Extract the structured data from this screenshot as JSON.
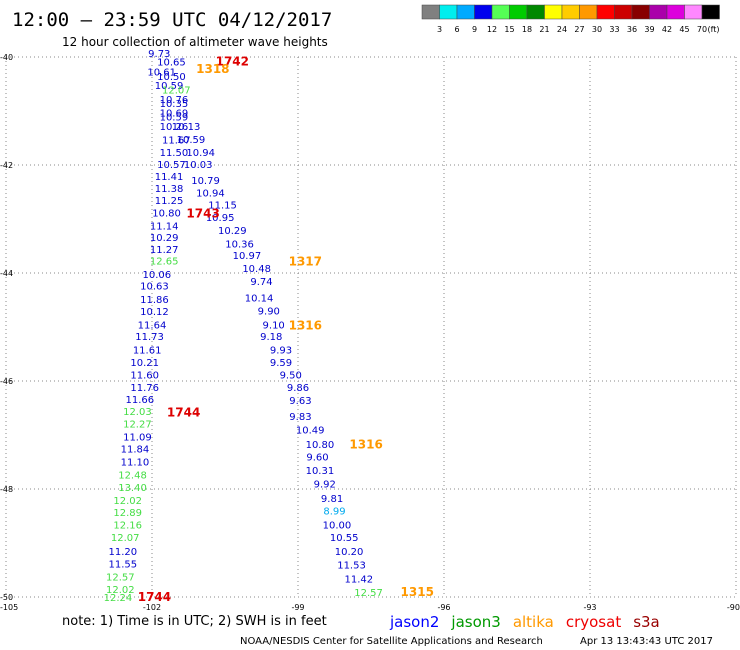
{
  "header": {
    "title": "12:00 – 23:59 UTC 04/12/2017",
    "subtitle": "12 hour collection of altimeter wave heights"
  },
  "colorbar": {
    "labels": [
      "3",
      "6",
      "9",
      "12",
      "15",
      "18",
      "21",
      "24",
      "27",
      "30",
      "33",
      "36",
      "39",
      "42",
      "45",
      "70"
    ],
    "unit": "(ft)",
    "colors": [
      "#808080",
      "#00eeee",
      "#00aaff",
      "#0000ee",
      "#55ff55",
      "#00cc00",
      "#008800",
      "#ffff00",
      "#ffcc00",
      "#ff9900",
      "#ff0000",
      "#cc0000",
      "#880000",
      "#aa00aa",
      "#dd00dd",
      "#ff88ff",
      "#000000"
    ]
  },
  "footer": {
    "note": "note:  1) Time is in UTC;  2) SWH is in feet",
    "credit": "NOAA/NESDIS Center for Satellite Applications and Research",
    "timestamp": "Apr 13 13:43:43 UTC 2017"
  },
  "legend": [
    {
      "name": "jason2",
      "color": "#0000ff"
    },
    {
      "name": "jason3",
      "color": "#009900"
    },
    {
      "name": "altika",
      "color": "#ff9900"
    },
    {
      "name": "cryosat",
      "color": "#ee0000"
    },
    {
      "name": "s3a",
      "color": "#990000"
    }
  ],
  "chart_data": {
    "type": "scatter",
    "title": "12:00 – 23:59 UTC 04/12/2017",
    "xlabel": "",
    "ylabel": "",
    "xlim": [
      -105,
      -90
    ],
    "ylim": [
      -50,
      -40
    ],
    "xticks": [
      -105,
      -102,
      -99,
      -96,
      -93,
      -90
    ],
    "yticks": [
      -40,
      -42,
      -44,
      -46,
      -48,
      -50
    ],
    "grid": true,
    "wave_heights_ft": [
      {
        "lon": -101.85,
        "lat": -39.93,
        "v": "9.73",
        "c": "#0000cc"
      },
      {
        "lon": -101.6,
        "lat": -40.08,
        "v": "10.65",
        "c": "#0000cc"
      },
      {
        "lon": -101.8,
        "lat": -40.27,
        "v": "10.61",
        "c": "#0000cc"
      },
      {
        "lon": -101.6,
        "lat": -40.35,
        "v": "10.50",
        "c": "#0000cc"
      },
      {
        "lon": -101.65,
        "lat": -40.52,
        "v": "10.59",
        "c": "#0000cc"
      },
      {
        "lon": -101.5,
        "lat": -40.6,
        "v": "12.07",
        "c": "#44dd44"
      },
      {
        "lon": -101.55,
        "lat": -40.78,
        "v": "10.76",
        "c": "#0000cc"
      },
      {
        "lon": -101.55,
        "lat": -40.85,
        "v": "10.35",
        "c": "#0000cc"
      },
      {
        "lon": -101.55,
        "lat": -41.03,
        "v": "10.69",
        "c": "#0000cc"
      },
      {
        "lon": -101.55,
        "lat": -41.1,
        "v": "10.59",
        "c": "#0000cc"
      },
      {
        "lon": -101.55,
        "lat": -41.28,
        "v": "10.26",
        "c": "#0000cc"
      },
      {
        "lon": -101.3,
        "lat": -41.28,
        "v": "10.13",
        "c": "#0000cc"
      },
      {
        "lon": -101.5,
        "lat": -41.53,
        "v": "11.67",
        "c": "#0000cc"
      },
      {
        "lon": -101.2,
        "lat": -41.52,
        "v": "10.59",
        "c": "#0000cc"
      },
      {
        "lon": -101.55,
        "lat": -41.76,
        "v": "11.50",
        "c": "#0000cc"
      },
      {
        "lon": -101.0,
        "lat": -41.76,
        "v": "10.94",
        "c": "#0000cc"
      },
      {
        "lon": -101.6,
        "lat": -41.98,
        "v": "10.57",
        "c": "#0000cc"
      },
      {
        "lon": -101.05,
        "lat": -41.98,
        "v": "10.03",
        "c": "#0000cc"
      },
      {
        "lon": -101.65,
        "lat": -42.2,
        "v": "11.41",
        "c": "#0000cc"
      },
      {
        "lon": -100.9,
        "lat": -42.28,
        "v": "10.79",
        "c": "#0000cc"
      },
      {
        "lon": -101.65,
        "lat": -42.43,
        "v": "11.38",
        "c": "#0000cc"
      },
      {
        "lon": -100.8,
        "lat": -42.51,
        "v": "10.94",
        "c": "#0000cc"
      },
      {
        "lon": -101.65,
        "lat": -42.65,
        "v": "11.25",
        "c": "#0000cc"
      },
      {
        "lon": -100.55,
        "lat": -42.73,
        "v": "11.15",
        "c": "#0000cc"
      },
      {
        "lon": -101.7,
        "lat": -42.88,
        "v": "10.80",
        "c": "#0000cc"
      },
      {
        "lon": -100.6,
        "lat": -42.96,
        "v": "10.95",
        "c": "#0000cc"
      },
      {
        "lon": -101.75,
        "lat": -43.12,
        "v": "11.14",
        "c": "#0000cc"
      },
      {
        "lon": -100.35,
        "lat": -43.2,
        "v": "10.29",
        "c": "#0000cc"
      },
      {
        "lon": -101.75,
        "lat": -43.33,
        "v": "10.29",
        "c": "#0000cc"
      },
      {
        "lon": -100.2,
        "lat": -43.45,
        "v": "10.36",
        "c": "#0000cc"
      },
      {
        "lon": -101.75,
        "lat": -43.56,
        "v": "11.27",
        "c": "#0000cc"
      },
      {
        "lon": -100.05,
        "lat": -43.67,
        "v": "10.97",
        "c": "#0000cc"
      },
      {
        "lon": -101.75,
        "lat": -43.77,
        "v": "12.65",
        "c": "#44dd44"
      },
      {
        "lon": -99.85,
        "lat": -43.91,
        "v": "10.48",
        "c": "#0000cc"
      },
      {
        "lon": -101.9,
        "lat": -44.02,
        "v": "10.06",
        "c": "#0000cc"
      },
      {
        "lon": -99.75,
        "lat": -44.15,
        "v": "9.74",
        "c": "#0000cc"
      },
      {
        "lon": -101.95,
        "lat": -44.23,
        "v": "10.63",
        "c": "#0000cc"
      },
      {
        "lon": -99.8,
        "lat": -44.45,
        "v": "10.14",
        "c": "#0000cc"
      },
      {
        "lon": -101.95,
        "lat": -44.48,
        "v": "11.86",
        "c": "#0000cc"
      },
      {
        "lon": -99.6,
        "lat": -44.69,
        "v": "9.90",
        "c": "#0000cc"
      },
      {
        "lon": -101.95,
        "lat": -44.7,
        "v": "10.12",
        "c": "#0000cc"
      },
      {
        "lon": -99.5,
        "lat": -44.95,
        "v": "9.10",
        "c": "#0000cc"
      },
      {
        "lon": -102.0,
        "lat": -44.95,
        "v": "11.64",
        "c": "#0000cc"
      },
      {
        "lon": -99.55,
        "lat": -45.17,
        "v": "9.18",
        "c": "#0000cc"
      },
      {
        "lon": -102.05,
        "lat": -45.17,
        "v": "11.73",
        "c": "#0000cc"
      },
      {
        "lon": -99.35,
        "lat": -45.42,
        "v": "9.93",
        "c": "#0000cc"
      },
      {
        "lon": -102.1,
        "lat": -45.42,
        "v": "11.61",
        "c": "#0000cc"
      },
      {
        "lon": -99.35,
        "lat": -45.65,
        "v": "9.59",
        "c": "#0000cc"
      },
      {
        "lon": -102.15,
        "lat": -45.65,
        "v": "10.21",
        "c": "#0000cc"
      },
      {
        "lon": -99.15,
        "lat": -45.88,
        "v": "9.50",
        "c": "#0000cc"
      },
      {
        "lon": -102.15,
        "lat": -45.88,
        "v": "11.60",
        "c": "#0000cc"
      },
      {
        "lon": -99.0,
        "lat": -46.11,
        "v": "9.86",
        "c": "#0000cc"
      },
      {
        "lon": -102.15,
        "lat": -46.11,
        "v": "11.76",
        "c": "#0000cc"
      },
      {
        "lon": -98.95,
        "lat": -46.35,
        "v": "9.63",
        "c": "#0000cc"
      },
      {
        "lon": -102.25,
        "lat": -46.33,
        "v": "11.66",
        "c": "#0000cc"
      },
      {
        "lon": -102.3,
        "lat": -46.56,
        "v": "12.03",
        "c": "#44dd44"
      },
      {
        "lon": -98.95,
        "lat": -46.65,
        "v": "9.83",
        "c": "#0000cc"
      },
      {
        "lon": -102.3,
        "lat": -46.79,
        "v": "12.27",
        "c": "#44dd44"
      },
      {
        "lon": -98.75,
        "lat": -46.9,
        "v": "10.49",
        "c": "#0000cc"
      },
      {
        "lon": -102.3,
        "lat": -47.03,
        "v": "11.09",
        "c": "#0000cc"
      },
      {
        "lon": -98.55,
        "lat": -47.17,
        "v": "10.80",
        "c": "#0000cc"
      },
      {
        "lon": -102.35,
        "lat": -47.25,
        "v": "11.84",
        "c": "#0000cc"
      },
      {
        "lon": -98.6,
        "lat": -47.4,
        "v": "9.60",
        "c": "#0000cc"
      },
      {
        "lon": -102.35,
        "lat": -47.49,
        "v": "11.10",
        "c": "#0000cc"
      },
      {
        "lon": -98.55,
        "lat": -47.65,
        "v": "10.31",
        "c": "#0000cc"
      },
      {
        "lon": -102.4,
        "lat": -47.73,
        "v": "12.48",
        "c": "#44dd44"
      },
      {
        "lon": -98.45,
        "lat": -47.9,
        "v": "9.92",
        "c": "#0000cc"
      },
      {
        "lon": -102.4,
        "lat": -47.96,
        "v": "13.40",
        "c": "#44dd44"
      },
      {
        "lon": -98.3,
        "lat": -48.17,
        "v": "9.81",
        "c": "#0000cc"
      },
      {
        "lon": -102.5,
        "lat": -48.2,
        "v": "12.02",
        "c": "#44dd44"
      },
      {
        "lon": -98.25,
        "lat": -48.4,
        "v": "8.99",
        "c": "#00aaee"
      },
      {
        "lon": -102.5,
        "lat": -48.43,
        "v": "12.89",
        "c": "#44dd44"
      },
      {
        "lon": -98.2,
        "lat": -48.66,
        "v": "10.00",
        "c": "#0000cc"
      },
      {
        "lon": -102.5,
        "lat": -48.66,
        "v": "12.16",
        "c": "#44dd44"
      },
      {
        "lon": -98.05,
        "lat": -48.89,
        "v": "10.55",
        "c": "#0000cc"
      },
      {
        "lon": -102.55,
        "lat": -48.89,
        "v": "12.07",
        "c": "#44dd44"
      },
      {
        "lon": -97.95,
        "lat": -49.15,
        "v": "10.20",
        "c": "#0000cc"
      },
      {
        "lon": -102.6,
        "lat": -49.15,
        "v": "11.20",
        "c": "#0000cc"
      },
      {
        "lon": -97.9,
        "lat": -49.4,
        "v": "11.53",
        "c": "#0000cc"
      },
      {
        "lon": -102.6,
        "lat": -49.38,
        "v": "11.55",
        "c": "#0000cc"
      },
      {
        "lon": -97.75,
        "lat": -49.66,
        "v": "11.42",
        "c": "#0000cc"
      },
      {
        "lon": -102.65,
        "lat": -49.62,
        "v": "12.57",
        "c": "#44dd44"
      },
      {
        "lon": -102.65,
        "lat": -49.85,
        "v": "12.02",
        "c": "#44dd44"
      },
      {
        "lon": -97.55,
        "lat": -49.91,
        "v": "12.57",
        "c": "#44dd44"
      },
      {
        "lon": -102.7,
        "lat": -50.0,
        "v": "12.24",
        "c": "#44dd44"
      }
    ],
    "time_labels": [
      {
        "lon": -100.35,
        "lat": -40.08,
        "v": "1742",
        "c": "#dd0000"
      },
      {
        "lon": -100.75,
        "lat": -40.22,
        "v": "1318",
        "c": "#ff9900"
      },
      {
        "lon": -100.95,
        "lat": -42.9,
        "v": "1743",
        "c": "#dd0000"
      },
      {
        "lon": -98.85,
        "lat": -43.79,
        "v": "1317",
        "c": "#ff9900"
      },
      {
        "lon": -98.85,
        "lat": -44.97,
        "v": "1316",
        "c": "#ff9900"
      },
      {
        "lon": -101.35,
        "lat": -46.58,
        "v": "1744",
        "c": "#dd0000"
      },
      {
        "lon": -97.6,
        "lat": -47.18,
        "v": "1316",
        "c": "#ff9900"
      },
      {
        "lon": -96.55,
        "lat": -49.91,
        "v": "1315",
        "c": "#ff9900"
      },
      {
        "lon": -101.95,
        "lat": -50.0,
        "v": "1744",
        "c": "#dd0000"
      }
    ]
  }
}
